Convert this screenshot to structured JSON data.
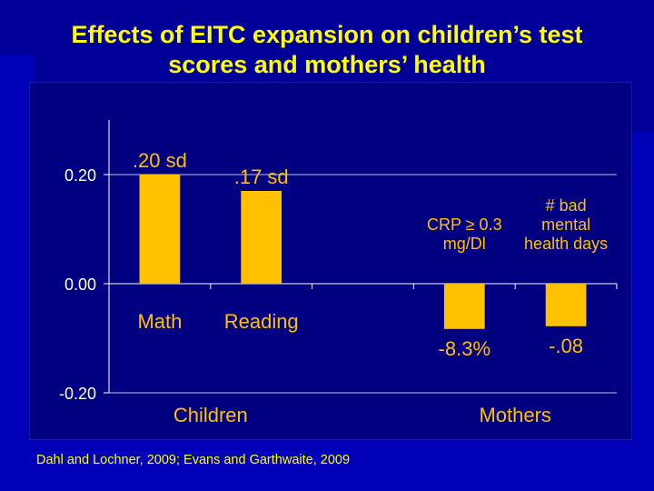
{
  "slide": {
    "title_line1": "Effects of EITC expansion on children’s test",
    "title_line2": "scores and mothers’ health",
    "source": "Dahl and Lochner, 2009; Evans and Garthwaite, 2009"
  },
  "colors": {
    "background": "#000099",
    "plot_background": "#000080",
    "bar": "#ffc000",
    "title_text": "#ffff00",
    "chart_text": "#ffffff",
    "axis": "#ffffff"
  },
  "chart_data": {
    "type": "bar",
    "categories": [
      "Math",
      "Reading",
      "",
      "CRP ≥ 0.3 mg/Dl",
      "# bad mental health days"
    ],
    "values": [
      0.2,
      0.17,
      null,
      -0.083,
      -0.078
    ],
    "data_labels": [
      ".20 sd",
      ".17 sd",
      "",
      "-8.3%",
      "-.08"
    ],
    "category_labels": [
      {
        "lines": [
          "Math"
        ],
        "placement": "below-axis",
        "size": "large"
      },
      {
        "lines": [
          "Reading"
        ],
        "placement": "below-axis",
        "size": "large"
      },
      {
        "lines": [],
        "placement": "none",
        "size": "large"
      },
      {
        "lines": [
          "CRP ≥ 0.3",
          "mg/Dl"
        ],
        "placement": "above-axis",
        "size": "small"
      },
      {
        "lines": [
          "# bad",
          "mental",
          "health days"
        ],
        "placement": "above-axis",
        "size": "small"
      }
    ],
    "groups": [
      {
        "label": "Children",
        "categories": [
          0,
          1
        ]
      },
      {
        "label": "Mothers",
        "categories": [
          3,
          4
        ]
      }
    ],
    "yticks": [
      0.2,
      0.0,
      -0.2
    ],
    "ytick_labels": [
      "0.20",
      "0.00",
      "-0.20"
    ],
    "ylim": [
      -0.2,
      0.2
    ],
    "grid": false,
    "xlabel": "",
    "ylabel": ""
  }
}
